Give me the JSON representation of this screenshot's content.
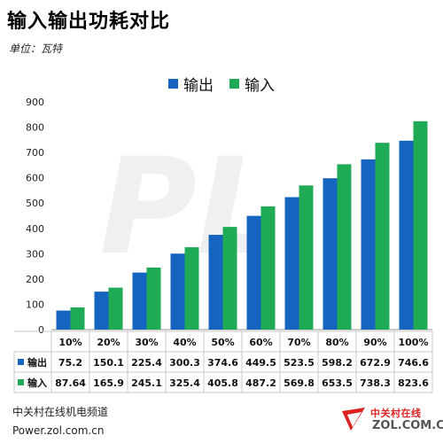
{
  "header": {
    "title": "输入输出功耗对比",
    "subtitle": "单位：瓦特"
  },
  "footer": {
    "source_line1": "中关村在线机电频道",
    "source_line2": "Power.zol.com.cn",
    "logo_cn": "中关村在线",
    "logo_en": "ZOL.COM.CN"
  },
  "colors": {
    "output": "#1565c0",
    "input": "#1faa55",
    "watermark": "#eef0f2"
  },
  "watermark_text": "PL",
  "chart_data": {
    "type": "bar",
    "title": "输入输出功耗对比",
    "subtitle": "单位：瓦特",
    "categories": [
      "10%",
      "20%",
      "30%",
      "40%",
      "50%",
      "60%",
      "70%",
      "80%",
      "90%",
      "100%"
    ],
    "series": [
      {
        "name": "输出",
        "values": [
          75.2,
          150.1,
          225.4,
          300.3,
          374.6,
          449.5,
          523.5,
          598.2,
          672.9,
          746.6
        ]
      },
      {
        "name": "输入",
        "values": [
          87.64,
          165.9,
          245.1,
          325.4,
          405.8,
          487.2,
          569.8,
          653.5,
          738.3,
          823.6
        ]
      }
    ],
    "table_rows": [
      {
        "label": "输出",
        "values": [
          "75.2",
          "150.1",
          "225.4",
          "300.3",
          "374.6",
          "449.5",
          "523.5",
          "598.2",
          "672.9",
          "746.6"
        ]
      },
      {
        "label": "输入",
        "values": [
          "87.64",
          "165.9",
          "245.1",
          "325.4",
          "405.8",
          "487.2",
          "569.8",
          "653.5",
          "738.3",
          "823.6"
        ]
      }
    ],
    "ylim": [
      0,
      900
    ],
    "yticks": [
      0,
      100,
      200,
      300,
      400,
      500,
      600,
      700,
      800,
      900
    ],
    "grid": false,
    "legend_position": "top-center",
    "xlabel": "",
    "ylabel": ""
  }
}
